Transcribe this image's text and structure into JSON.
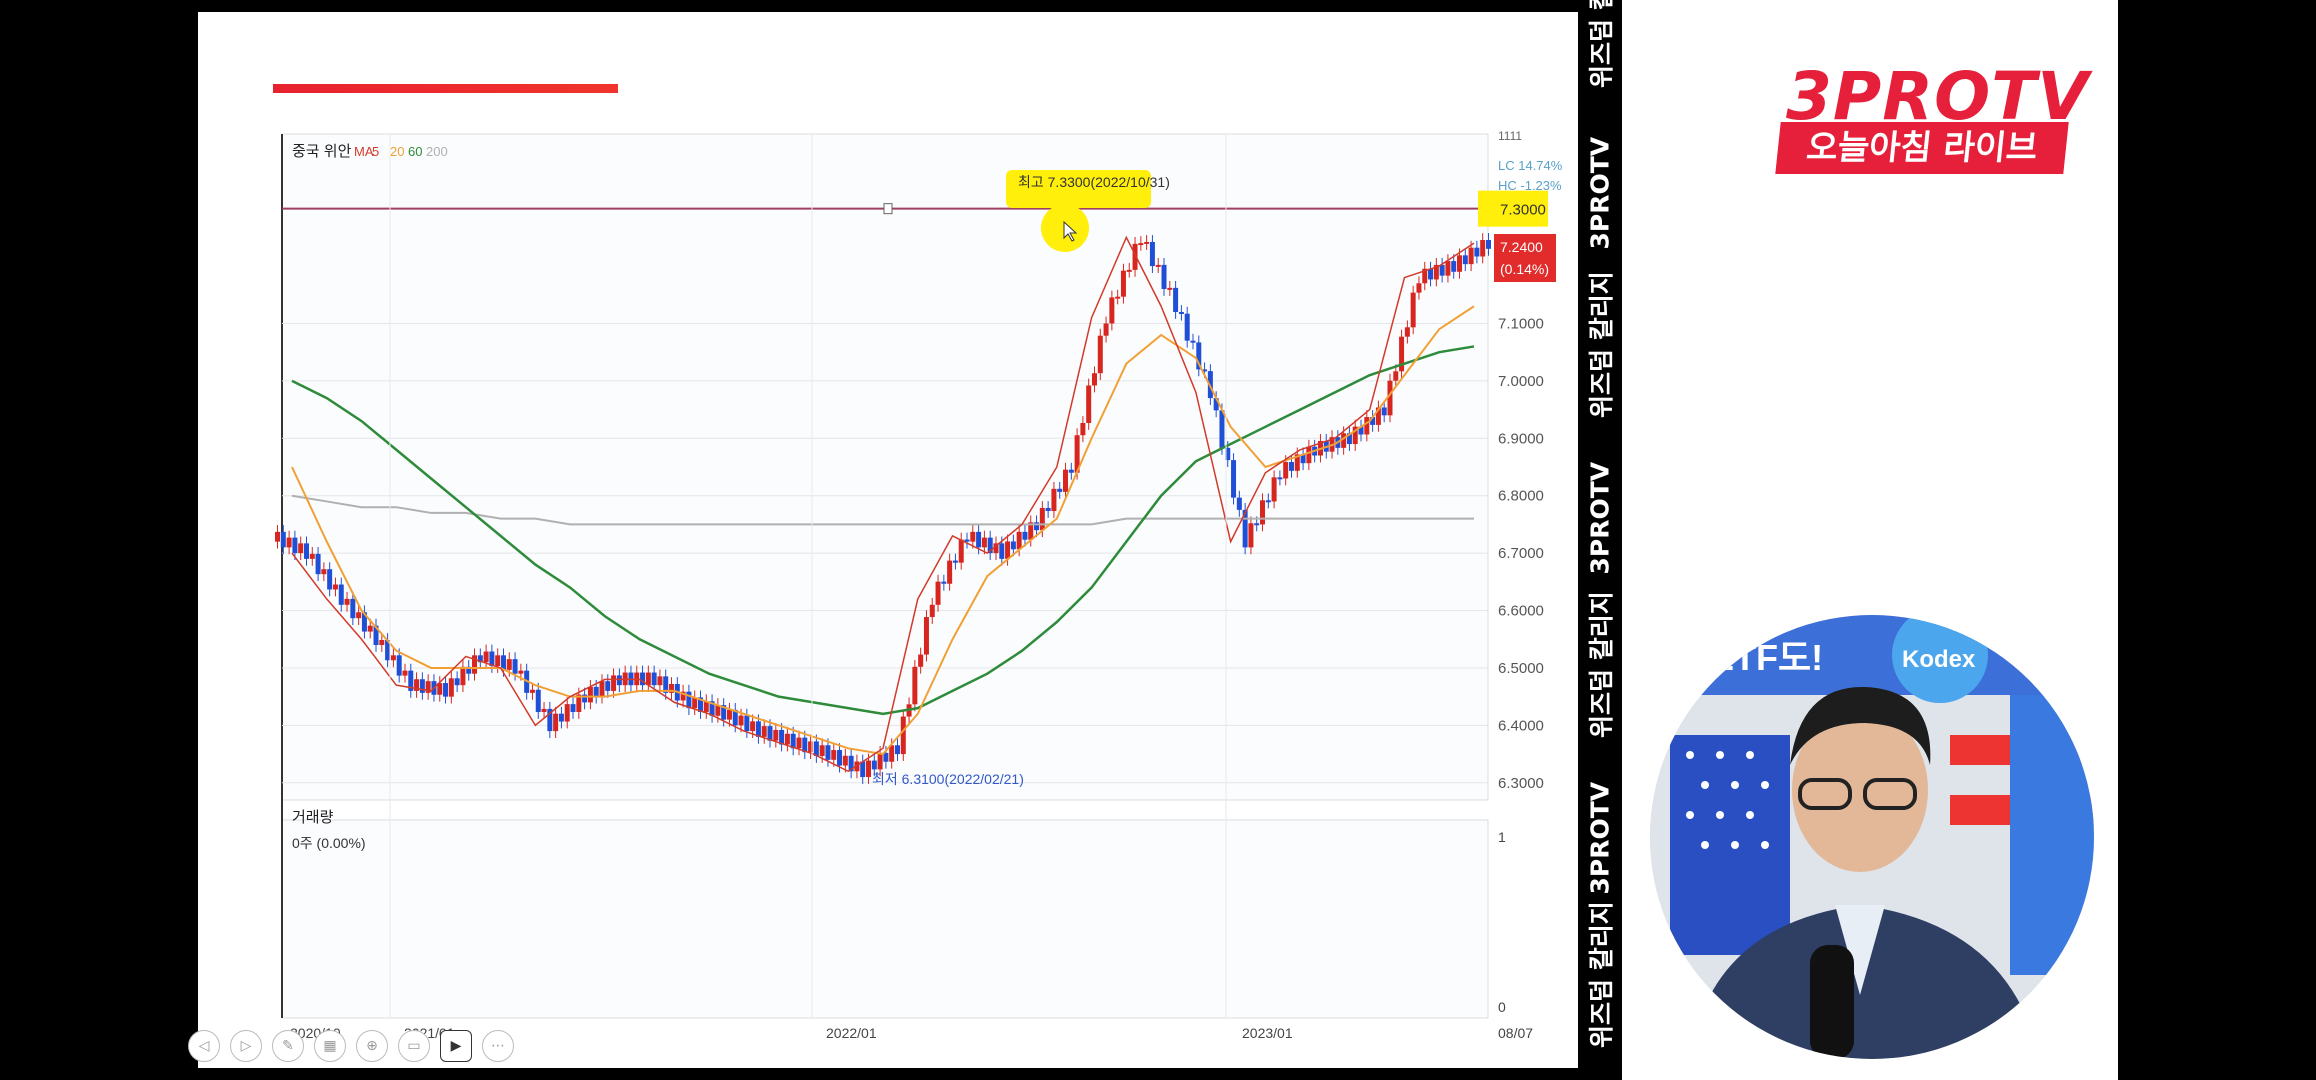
{
  "chart_data": {
    "type": "candlestick",
    "title": "중국 위안",
    "ma_legend": {
      "prefix": "MA",
      "periods": [
        "5",
        "20",
        "60",
        "200"
      ],
      "colors": [
        "#d23a2a",
        "#f1a035",
        "#2e8b3a",
        "#b0b0b0"
      ]
    },
    "x_tick_labels": [
      "2020/10",
      "2021/01",
      "2022/01",
      "2023/01",
      "08/07"
    ],
    "y_tick_labels": [
      "7.3000",
      "7.1000",
      "7.0000",
      "6.9000",
      "6.8000",
      "6.7000",
      "6.6000",
      "6.5000",
      "6.4000",
      "6.3000"
    ],
    "ylim": [
      6.27,
      7.43
    ],
    "high_annotation": "최고 7.3300(2022/10/31)",
    "low_annotation": "최저 6.3100(2022/02/21)",
    "hline_value": 7.3,
    "hline_label": "7.3000",
    "current_price_label": "7.2400",
    "current_change_label": "(0.14%)",
    "lc_label": "LC  14.74%",
    "hc_label": "HC  -1.23%",
    "corner_label": "1111",
    "x_dates": [
      "2020-10",
      "2020-11",
      "2020-12",
      "2021-01",
      "2021-02",
      "2021-03",
      "2021-04",
      "2021-05",
      "2021-06",
      "2021-07",
      "2021-08",
      "2021-09",
      "2021-10",
      "2021-11",
      "2021-12",
      "2022-01",
      "2022-02",
      "2022-03",
      "2022-04",
      "2022-05",
      "2022-06",
      "2022-07",
      "2022-08",
      "2022-09",
      "2022-10",
      "2022-11",
      "2022-12",
      "2023-01",
      "2023-02",
      "2023-03",
      "2023-04",
      "2023-05",
      "2023-06",
      "2023-07",
      "2023-08"
    ],
    "close_series": [
      6.7,
      6.62,
      6.55,
      6.47,
      6.46,
      6.52,
      6.5,
      6.4,
      6.45,
      6.48,
      6.48,
      6.44,
      6.42,
      6.39,
      6.37,
      6.35,
      6.32,
      6.36,
      6.62,
      6.73,
      6.7,
      6.75,
      6.85,
      7.11,
      7.25,
      7.13,
      6.98,
      6.72,
      6.84,
      6.88,
      6.9,
      6.95,
      7.18,
      7.2,
      7.24
    ],
    "ma20_series": [
      6.85,
      6.72,
      6.6,
      6.53,
      6.5,
      6.5,
      6.5,
      6.47,
      6.45,
      6.45,
      6.46,
      6.46,
      6.44,
      6.42,
      6.4,
      6.38,
      6.36,
      6.35,
      6.42,
      6.55,
      6.66,
      6.71,
      6.76,
      6.9,
      7.03,
      7.08,
      7.04,
      6.92,
      6.85,
      6.87,
      6.89,
      6.93,
      7.01,
      7.09,
      7.13
    ],
    "ma60_series": [
      7.0,
      6.97,
      6.93,
      6.88,
      6.83,
      6.78,
      6.73,
      6.68,
      6.64,
      6.59,
      6.55,
      6.52,
      6.49,
      6.47,
      6.45,
      6.44,
      6.43,
      6.42,
      6.43,
      6.46,
      6.49,
      6.53,
      6.58,
      6.64,
      6.72,
      6.8,
      6.86,
      6.89,
      6.92,
      6.95,
      6.98,
      7.01,
      7.03,
      7.05,
      7.06
    ],
    "ma200_series": [
      6.8,
      6.79,
      6.78,
      6.78,
      6.77,
      6.77,
      6.76,
      6.76,
      6.75,
      6.75,
      6.75,
      6.75,
      6.75,
      6.75,
      6.75,
      6.75,
      6.75,
      6.75,
      6.75,
      6.75,
      6.75,
      6.75,
      6.75,
      6.75,
      6.76,
      6.76,
      6.76,
      6.76,
      6.76,
      6.76,
      6.76,
      6.76,
      6.76,
      6.76,
      6.76
    ],
    "volume_panel": {
      "title": "거래량",
      "value_label": "0주 (0.00%)",
      "y_tick_labels": [
        "1",
        "0"
      ]
    }
  },
  "right_strip": {
    "items": [
      "위즈덤 칼리지",
      "3PROTV",
      "위즈덤 칼리지",
      "3PROTV",
      "위즈덤 칼리지",
      "3PROTV",
      "위즈덤 칼리지"
    ]
  },
  "logo": {
    "main": "3PROTV",
    "sub": "오늘아침 라이브"
  },
  "presenter_scene": {
    "banner_text": "ETF도!",
    "brand": "Kodex"
  },
  "colors": {
    "up": "#d7261f",
    "down": "#1f4fd6",
    "accent": "#e6203a",
    "highlight": "#ffef0a"
  }
}
